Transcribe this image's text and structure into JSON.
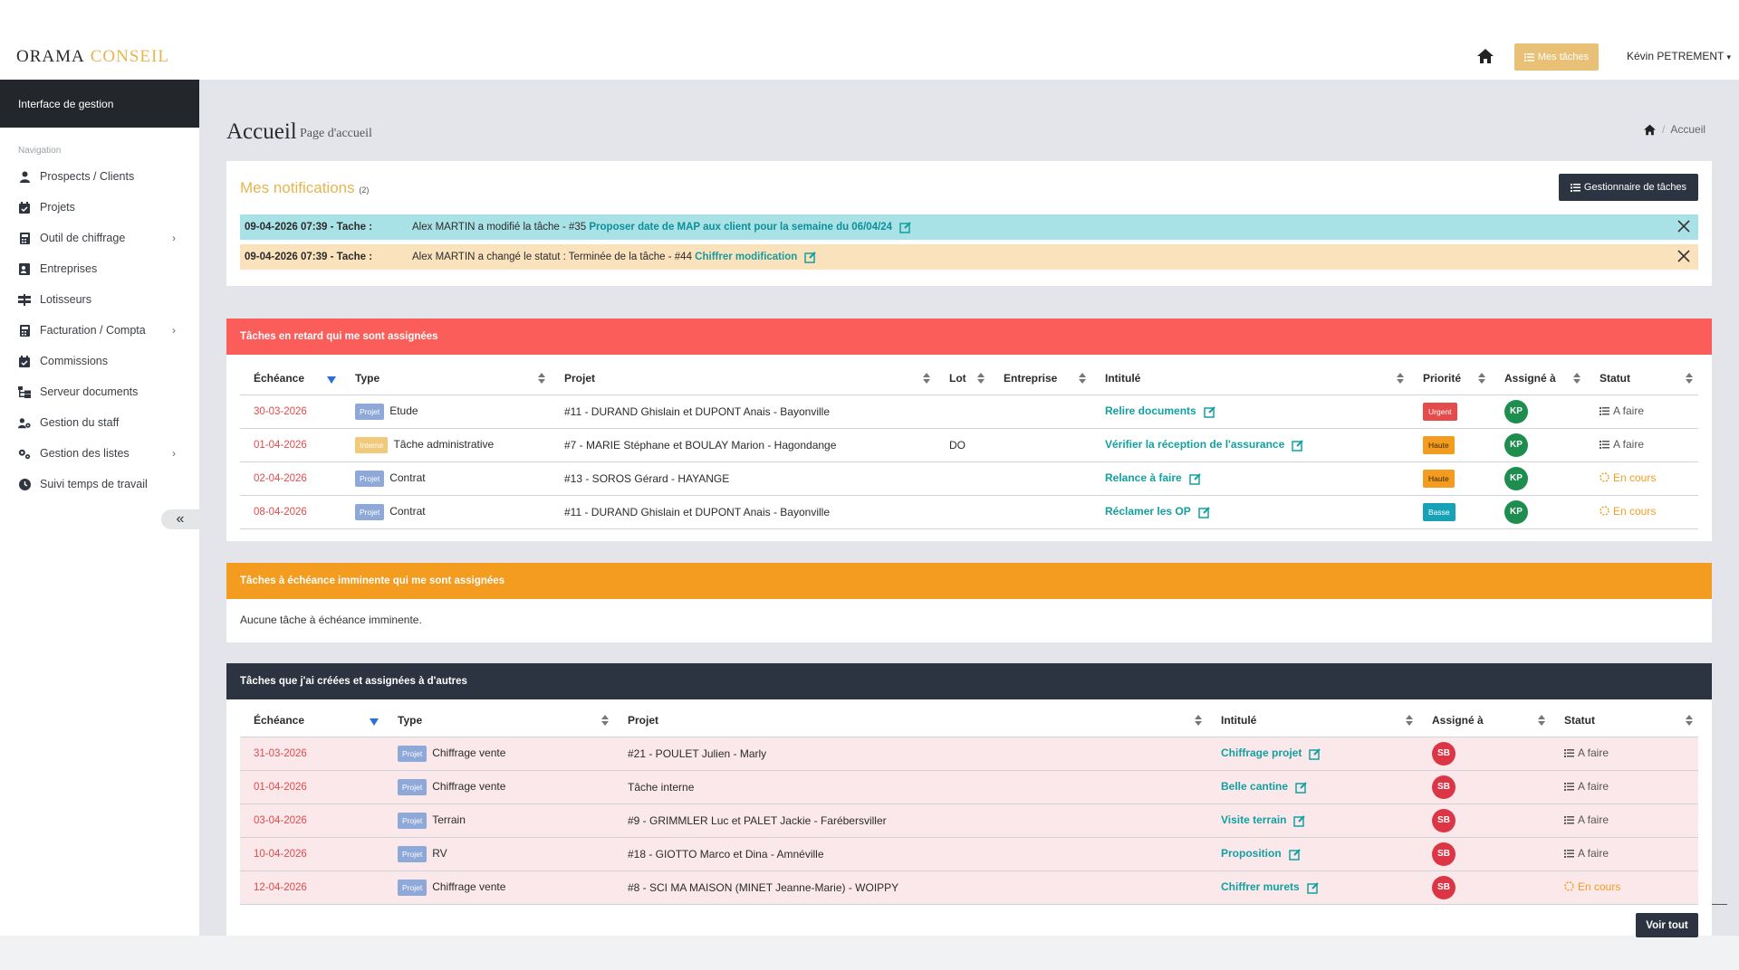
{
  "header": {
    "logo_part1": "ORAMA",
    "logo_part2": "CONSEIL",
    "my_tasks_label": "Mes tâches",
    "user_name": "Kévin PETREMENT"
  },
  "sidebar": {
    "title": "Interface de gestion",
    "nav_title": "Navigation",
    "items": [
      {
        "label": "Prospects / Clients",
        "icon": "user-icon"
      },
      {
        "label": "Projets",
        "icon": "calendar-check-icon"
      },
      {
        "label": "Outil de chiffrage",
        "icon": "calculator-icon"
      },
      {
        "label": "Entreprises",
        "icon": "contact-card-icon"
      },
      {
        "label": "Lotisseurs",
        "icon": "signpost-icon"
      },
      {
        "label": "Facturation / Compta",
        "icon": "calculator-icon"
      },
      {
        "label": "Commissions",
        "icon": "calendar-check-icon"
      },
      {
        "label": "Serveur documents",
        "icon": "folder-tree-icon"
      },
      {
        "label": "Gestion du staff",
        "icon": "users-gear-icon"
      },
      {
        "label": "Gestion des listes",
        "icon": "cogs-icon"
      },
      {
        "label": "Suivi temps de travail",
        "icon": "clock-icon"
      }
    ]
  },
  "page": {
    "title": "Accueil",
    "subtitle": "Page d'accueil",
    "breadcrumb_current": "Accueil"
  },
  "notifications": {
    "title": "Mes notifications",
    "count": "(2)",
    "manager_button": "Gestionnaire de tâches",
    "items": [
      {
        "date": "09-04-2026 07:39 - Tache :",
        "text": "Alex MARTIN a modifié la tâche - #35",
        "link": "Proposer date de MAP aux client pour la semaine du 06/04/24"
      },
      {
        "date": "09-04-2026 07:39 - Tache :",
        "text": "Alex MARTIN a changé le statut : Terminée de la tâche - #44",
        "link": "Chiffrer modification"
      }
    ]
  },
  "late_tasks": {
    "title": "Tâches en retard qui me sont assignées",
    "columns": [
      "Échéance",
      "Type",
      "Projet",
      "Lot",
      "Entreprise",
      "Intitulé",
      "Priorité",
      "Assigné à",
      "Statut"
    ],
    "rows": [
      {
        "date": "30-03-2026",
        "badge": "Projet",
        "type": "Etude",
        "project": "#11 - DURAND Ghislain et DUPONT Anais - Bayonville",
        "lot": "",
        "company": "",
        "title": "Relire documents",
        "priority": "Urgent",
        "assignee": "KP",
        "status": "A faire"
      },
      {
        "date": "01-04-2026",
        "badge": "Interne",
        "type": "Tâche administrative",
        "project": "#7 - MARIE Stéphane et BOULAY Marion - Hagondange",
        "lot": "DO",
        "company": "",
        "title": "Vérifier la réception de l'assurance",
        "priority": "Haute",
        "assignee": "KP",
        "status": "A faire"
      },
      {
        "date": "02-04-2026",
        "badge": "Projet",
        "type": "Contrat",
        "project": "#13 - SOROS Gérard - HAYANGE",
        "lot": "",
        "company": "",
        "title": "Relance à faire",
        "priority": "Haute",
        "assignee": "KP",
        "status": "En cours"
      },
      {
        "date": "08-04-2026",
        "badge": "Projet",
        "type": "Contrat",
        "project": "#11 - DURAND Ghislain et DUPONT Anais - Bayonville",
        "lot": "",
        "company": "",
        "title": "Réclamer les OP",
        "priority": "Basse",
        "assignee": "KP",
        "status": "En cours"
      }
    ]
  },
  "imminent_tasks": {
    "title": "Tâches à échéance imminente qui me sont assignées",
    "empty": "Aucune tâche à échéance imminente."
  },
  "my_created_tasks": {
    "title": "Tâches que j'ai créées et assignées à d'autres",
    "columns": [
      "Échéance",
      "Type",
      "Projet",
      "Intitulé",
      "Assigné à",
      "Statut"
    ],
    "rows": [
      {
        "date": "31-03-2026",
        "badge": "Projet",
        "type": "Chiffrage vente",
        "project": "#21 - POULET Julien - Marly",
        "title": "Chiffrage projet",
        "assignee": "SB",
        "status": "A faire"
      },
      {
        "date": "01-04-2026",
        "badge": "Projet",
        "type": "Chiffrage vente",
        "project": "Tâche interne",
        "title": "Belle cantine",
        "assignee": "SB",
        "status": "A faire"
      },
      {
        "date": "03-04-2026",
        "badge": "Projet",
        "type": "Terrain",
        "project": "#9 - GRIMMLER Luc et PALET Jackie - Farébersviller",
        "title": "Visite terrain",
        "assignee": "SB",
        "status": "A faire"
      },
      {
        "date": "10-04-2026",
        "badge": "Projet",
        "type": "RV",
        "project": "#18 - GIOTTO Marco et Dina - Amnéville",
        "title": "Proposition",
        "assignee": "SB",
        "status": "A faire"
      },
      {
        "date": "12-04-2026",
        "badge": "Projet",
        "type": "Chiffrage vente",
        "project": "#8 - SCI MA MAISON (MINET Jeanne-Marie) - WOIPPY",
        "title": "Chiffrer murets",
        "assignee": "SB",
        "status": "En cours"
      }
    ],
    "see_all": "Voir tout"
  },
  "colors": {
    "accent_gold": "#e6b54f",
    "late_header": "#fb5d5b",
    "imminent_header": "#f39c1f",
    "dark": "#2b3440",
    "link_teal": "#12a0a0"
  }
}
